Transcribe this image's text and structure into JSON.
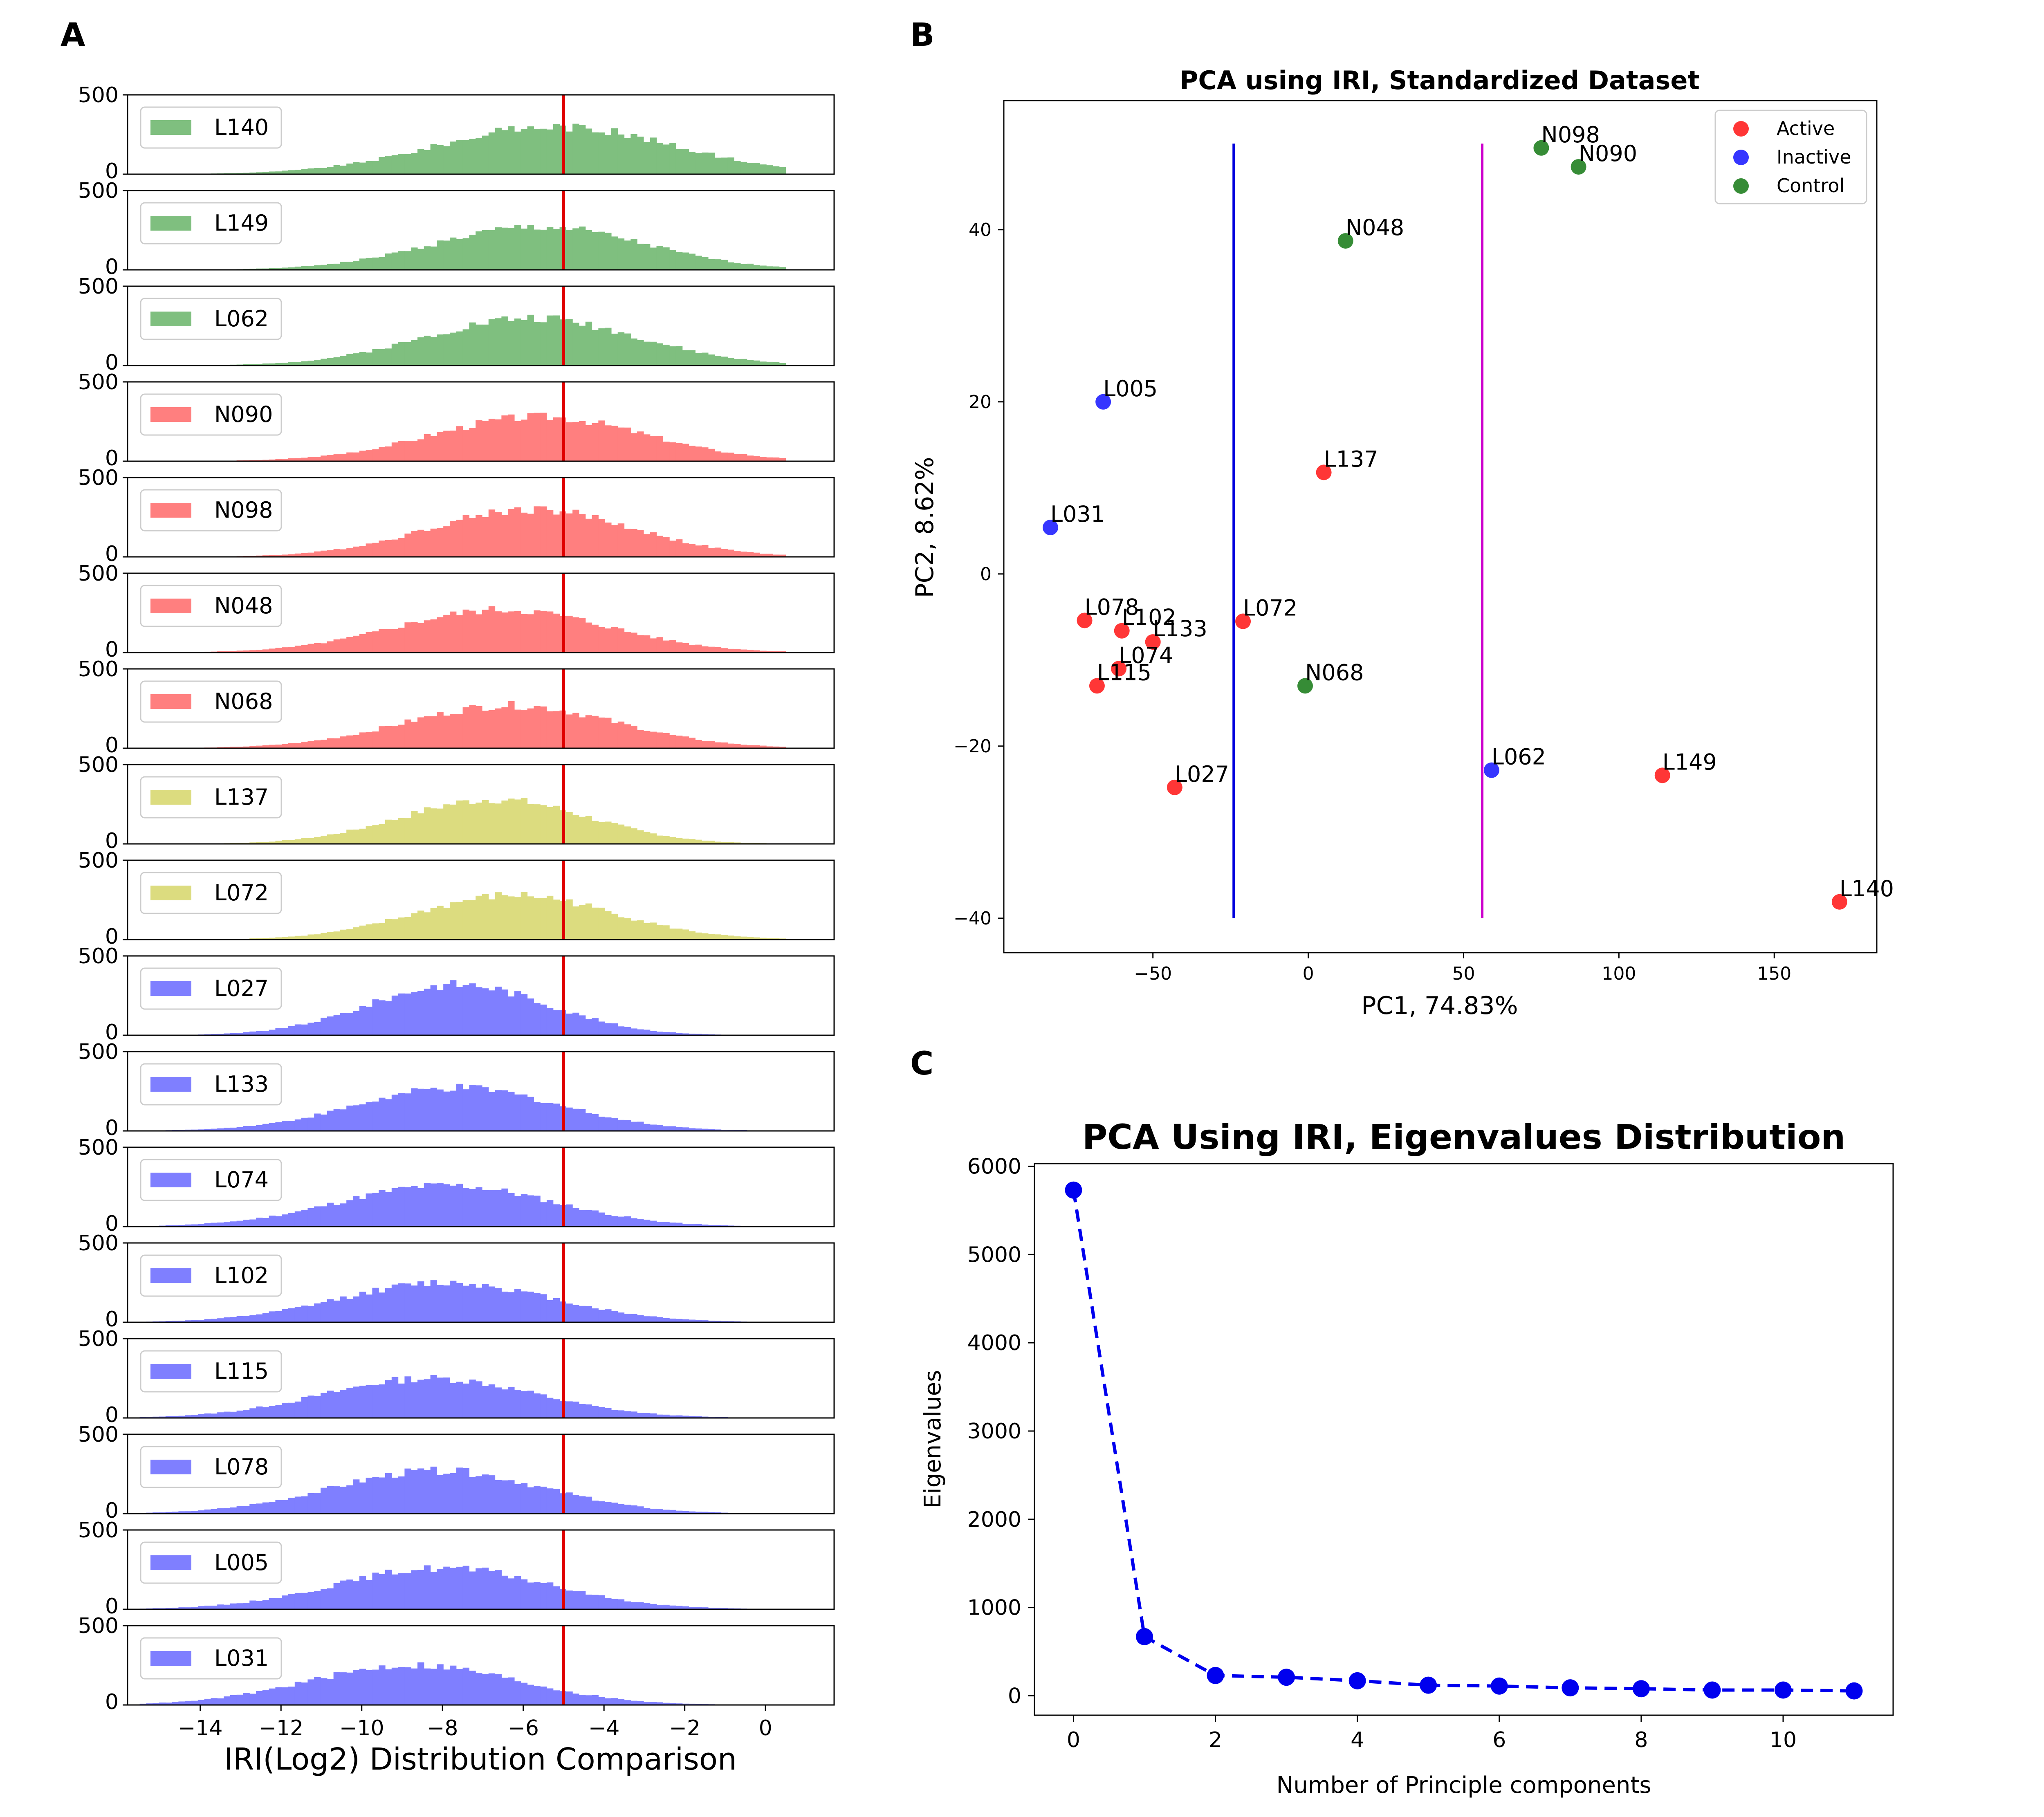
{
  "panels": {
    "a": "A",
    "b": "B",
    "c": "C"
  },
  "chart_data": [
    {
      "type": "histogram",
      "panel": "A",
      "xlabel": "IRI(Log2) Distribution Comparison",
      "xlim": [
        -15.8,
        1.7
      ],
      "xticks": [
        -14,
        -12,
        -10,
        -8,
        -6,
        -4,
        -2,
        0
      ],
      "xtick_labels": [
        "−14",
        "−12",
        "−10",
        "−8",
        "−6",
        "−4",
        "−2",
        "0"
      ],
      "ylim": [
        0,
        500
      ],
      "ytick_labels": [
        "0",
        "500"
      ],
      "threshold_x": -5,
      "threshold_color": "#e00000",
      "samples": [
        {
          "name": "L140",
          "color": "#7fbf7f",
          "peak_x": -5.2,
          "spread": 2.9,
          "peak": 300
        },
        {
          "name": "L149",
          "color": "#7fbf7f",
          "peak_x": -5.6,
          "spread": 2.6,
          "peak": 270
        },
        {
          "name": "L062",
          "color": "#7fbf7f",
          "peak_x": -5.8,
          "spread": 2.6,
          "peak": 300
        },
        {
          "name": "N090",
          "color": "#ff7f7f",
          "peak_x": -5.6,
          "spread": 2.6,
          "peak": 280
        },
        {
          "name": "N098",
          "color": "#ff7f7f",
          "peak_x": -5.8,
          "spread": 2.5,
          "peak": 300
        },
        {
          "name": "N048",
          "color": "#ff7f7f",
          "peak_x": -6.5,
          "spread": 2.6,
          "peak": 270
        },
        {
          "name": "N068",
          "color": "#ff7f7f",
          "peak_x": -6.3,
          "spread": 2.6,
          "peak": 270
        },
        {
          "name": "L137",
          "color": "#dcdc7f",
          "peak_x": -6.7,
          "spread": 2.3,
          "peak": 280
        },
        {
          "name": "L072",
          "color": "#dcdc7f",
          "peak_x": -6.2,
          "spread": 2.4,
          "peak": 280
        },
        {
          "name": "L027",
          "color": "#7f7fff",
          "peak_x": -7.6,
          "spread": 2.2,
          "peak": 320
        },
        {
          "name": "L133",
          "color": "#7f7fff",
          "peak_x": -7.6,
          "spread": 2.5,
          "peak": 270
        },
        {
          "name": "L074",
          "color": "#7f7fff",
          "peak_x": -7.9,
          "spread": 2.6,
          "peak": 260
        },
        {
          "name": "L102",
          "color": "#7f7fff",
          "peak_x": -7.9,
          "spread": 2.6,
          "peak": 250
        },
        {
          "name": "L115",
          "color": "#7f7fff",
          "peak_x": -8.3,
          "spread": 2.6,
          "peak": 250
        },
        {
          "name": "L078",
          "color": "#7f7fff",
          "peak_x": -8.1,
          "spread": 2.6,
          "peak": 270
        },
        {
          "name": "L005",
          "color": "#7f7fff",
          "peak_x": -8.0,
          "spread": 2.6,
          "peak": 260
        },
        {
          "name": "L031",
          "color": "#7f7fff",
          "peak_x": -8.7,
          "spread": 2.6,
          "peak": 250
        }
      ]
    },
    {
      "type": "scatter",
      "panel": "B",
      "title": "PCA using IRI, Standardized Dataset",
      "xlabel": "PC1, 74.83%",
      "ylabel": "PC2, 8.62%",
      "xlim": [
        -98,
        183
      ],
      "ylim": [
        -44,
        55
      ],
      "xticks": [
        -50,
        0,
        50,
        100,
        150
      ],
      "xtick_labels": [
        "−50",
        "0",
        "50",
        "100",
        "150"
      ],
      "yticks": [
        -40,
        -20,
        0,
        20,
        40
      ],
      "ytick_labels": [
        "−40",
        "−20",
        "0",
        "20",
        "40"
      ],
      "legend_position": "top-right",
      "groups": [
        {
          "name": "Active",
          "color": "#ff2020"
        },
        {
          "name": "Inactive",
          "color": "#2020ff"
        },
        {
          "name": "Control",
          "color": "#208020"
        }
      ],
      "vlines": [
        {
          "x": -24,
          "y_range": [
            -40,
            50
          ],
          "color": "#0000dd"
        },
        {
          "x": 56,
          "y_range": [
            -40,
            50
          ],
          "color": "#cc00cc"
        }
      ],
      "points": [
        {
          "label": "N098",
          "x": 75,
          "y": 49.5,
          "group": 2
        },
        {
          "label": "N090",
          "x": 87,
          "y": 47.3,
          "group": 2
        },
        {
          "label": "N048",
          "x": 12,
          "y": 38.7,
          "group": 2
        },
        {
          "label": "N068",
          "x": -1,
          "y": -13,
          "group": 2
        },
        {
          "label": "L005",
          "x": -66,
          "y": 20,
          "group": 1
        },
        {
          "label": "L031",
          "x": -83,
          "y": 5.4,
          "group": 1
        },
        {
          "label": "L062",
          "x": 59,
          "y": -22.8,
          "group": 1
        },
        {
          "label": "L137",
          "x": 5,
          "y": 11.8,
          "group": 0
        },
        {
          "label": "L072",
          "x": -21,
          "y": -5.5,
          "group": 0
        },
        {
          "label": "L078",
          "x": -72,
          "y": -5.4,
          "group": 0
        },
        {
          "label": "L102",
          "x": -60,
          "y": -6.6,
          "group": 0
        },
        {
          "label": "L133",
          "x": -50,
          "y": -7.9,
          "group": 0
        },
        {
          "label": "L074",
          "x": -61,
          "y": -11,
          "group": 0
        },
        {
          "label": "L115",
          "x": -68,
          "y": -13,
          "group": 0
        },
        {
          "label": "L027",
          "x": -43,
          "y": -24.8,
          "group": 0
        },
        {
          "label": "L149",
          "x": 114,
          "y": -23.4,
          "group": 0
        },
        {
          "label": "L140",
          "x": 171,
          "y": -38.1,
          "group": 0
        }
      ]
    },
    {
      "type": "line",
      "panel": "C",
      "title": "PCA Using IRI, Eigenvalues Distribution",
      "xlabel": "Number of Principle components",
      "ylabel": "Eigenvalues",
      "xlim": [
        -0.55,
        11.55
      ],
      "ylim": [
        -220,
        6030
      ],
      "xticks": [
        0,
        2,
        4,
        6,
        8,
        10
      ],
      "yticks": [
        0,
        1000,
        2000,
        3000,
        4000,
        5000,
        6000
      ],
      "line_style": "dashed",
      "color": "#0000ee",
      "x": [
        0,
        1,
        2,
        3,
        4,
        5,
        6,
        7,
        8,
        9,
        10,
        11
      ],
      "y": [
        5730,
        670,
        230,
        210,
        170,
        120,
        110,
        90,
        80,
        65,
        65,
        55
      ]
    }
  ]
}
